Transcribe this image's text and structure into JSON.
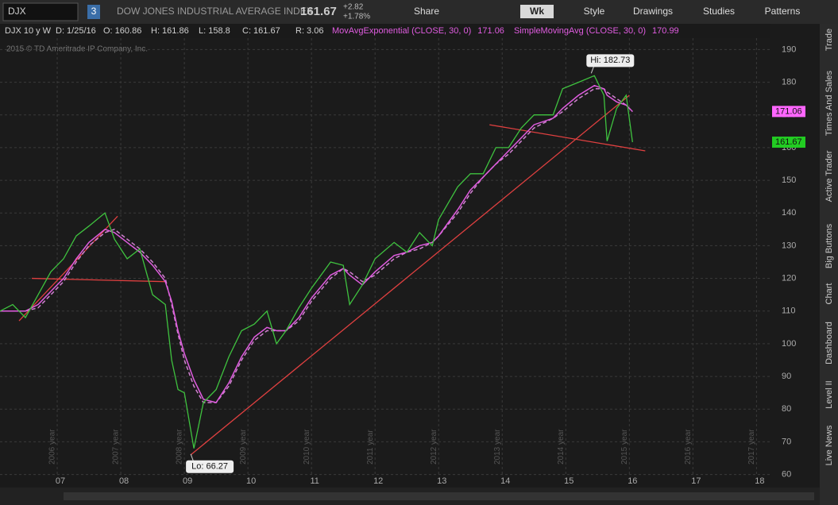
{
  "toolbar": {
    "symbol": "DJX",
    "link": "3",
    "description": "DOW JONES INDUSTRIAL AVERAGE INDEX",
    "last": "161.67",
    "change": "+2.82",
    "change_pct": "+1.78%",
    "buttons": [
      "Share",
      "Wk",
      "Style",
      "Drawings",
      "Studies",
      "Patterns"
    ]
  },
  "info_bar": {
    "items": [
      "DJX 10 y W",
      "D: 1/25/16",
      "O: 160.86",
      "H: 161.86",
      "L: 158.8",
      "C: 161.67",
      "R: 3.06"
    ],
    "studies": [
      {
        "name": "MovAvgExponential (CLOSE, 30, 0)",
        "value": "171.06",
        "color": "#e05ce0"
      },
      {
        "name": "SimpleMovingAvg (CLOSE, 30, 0)",
        "value": "170.99",
        "color": "#e05ce0"
      }
    ]
  },
  "copyright": "2015 © TD Ameritrade IP Company, Inc.",
  "side_tabs": [
    "Trade",
    "Times And Sales",
    "Active Trader",
    "Big Buttons",
    "Chart",
    "Dashboard",
    "Level II",
    "Live News"
  ],
  "chart_data": {
    "type": "line",
    "x": [
      2006.1,
      2006.3,
      2006.5,
      2006.7,
      2006.9,
      2007.1,
      2007.3,
      2007.5,
      2007.75,
      2007.9,
      2008.1,
      2008.3,
      2008.5,
      2008.7,
      2008.8,
      2008.9,
      2009.0,
      2009.15,
      2009.3,
      2009.5,
      2009.7,
      2009.9,
      2010.1,
      2010.3,
      2010.45,
      2010.6,
      2010.8,
      2011.0,
      2011.3,
      2011.5,
      2011.6,
      2011.8,
      2012.0,
      2012.3,
      2012.5,
      2012.7,
      2012.9,
      2013.0,
      2013.3,
      2013.5,
      2013.7,
      2013.9,
      2014.1,
      2014.3,
      2014.5,
      2014.8,
      2014.95,
      2015.2,
      2015.45,
      2015.6,
      2015.65,
      2015.8,
      2015.95,
      2016.05
    ],
    "series": [
      {
        "name": "DJX",
        "color": "#3fc23f",
        "values": [
          110,
          112,
          108,
          115,
          122,
          126,
          133,
          136,
          140,
          132,
          126,
          129,
          115,
          112,
          95,
          86,
          85,
          68,
          82,
          86,
          96,
          104,
          106,
          110,
          100,
          104,
          111,
          117,
          125,
          124,
          112,
          118,
          126,
          131,
          128,
          134,
          130,
          138,
          148,
          152,
          152,
          160,
          160,
          166,
          170,
          170,
          178,
          180,
          182,
          176,
          162,
          172,
          176,
          161.67
        ]
      },
      {
        "name": "MovAvgExponential",
        "color": "#e05ce0",
        "values": [
          110,
          110,
          110,
          112,
          116,
          120,
          126,
          131,
          135,
          134,
          131,
          128,
          124,
          119,
          113,
          104,
          97,
          89,
          83,
          82,
          88,
          96,
          102,
          105,
          104,
          104,
          108,
          114,
          121,
          123,
          121,
          118,
          122,
          127,
          128,
          130,
          131,
          133,
          141,
          147,
          151,
          155,
          159,
          163,
          167,
          169,
          172,
          176,
          179,
          178,
          176,
          174,
          173,
          171.06
        ]
      },
      {
        "name": "SimpleMovingAvg",
        "color": "#d080d0",
        "dash": true,
        "values": [
          110,
          110,
          110,
          111,
          115,
          119,
          125,
          130,
          134,
          135,
          132,
          129,
          125,
          120,
          112,
          103,
          95,
          87,
          82,
          82,
          87,
          95,
          101,
          104,
          104,
          104,
          107,
          113,
          120,
          123,
          122,
          119,
          121,
          126,
          128,
          129,
          131,
          133,
          140,
          146,
          151,
          155,
          158,
          162,
          166,
          169,
          171,
          175,
          178,
          178,
          177,
          175,
          173,
          170.99
        ]
      }
    ],
    "xlim": [
      2006.1,
      2018.22
    ],
    "xticks": [
      {
        "value": 2007,
        "label": "07"
      },
      {
        "value": 2008,
        "label": "08"
      },
      {
        "value": 2009,
        "label": "09"
      },
      {
        "value": 2010,
        "label": "10"
      },
      {
        "value": 2011,
        "label": "11"
      },
      {
        "value": 2012,
        "label": "12"
      },
      {
        "value": 2013,
        "label": "13"
      },
      {
        "value": 2014,
        "label": "14"
      },
      {
        "value": 2015,
        "label": "15"
      },
      {
        "value": 2016,
        "label": "16"
      },
      {
        "value": 2017,
        "label": "17"
      },
      {
        "value": 2018,
        "label": "18"
      }
    ],
    "year_labels": [
      "2006 year",
      "2007 year",
      "2008 year",
      "2009 year",
      "2010 year",
      "2011 year",
      "2012 year",
      "2013 year",
      "2014 year",
      "2015 year",
      "2016 year",
      "2017 year"
    ],
    "ylim": [
      59.9,
      193.5
    ],
    "yticks": [
      60,
      70,
      80,
      90,
      100,
      110,
      120,
      130,
      140,
      150,
      160,
      170,
      180,
      190
    ],
    "grid": true,
    "trendlines": [
      {
        "x": [
          2006.4,
          2007.95
        ],
        "y": [
          107,
          139
        ]
      },
      {
        "x": [
          2006.6,
          2008.7
        ],
        "y": [
          120,
          119
        ]
      },
      {
        "x": [
          2009.1,
          2016.0
        ],
        "y": [
          66,
          176
        ]
      },
      {
        "x": [
          2013.8,
          2016.25
        ],
        "y": [
          167,
          159
        ]
      }
    ],
    "trendline_color": "#e04040",
    "annotations": [
      {
        "text": "Hi: 182.73",
        "x": 2015.4,
        "y": 182.73
      },
      {
        "text": "Lo: 66.27",
        "x": 2009.1,
        "y": 66.27
      }
    ],
    "price_labels": [
      {
        "text": "171.06",
        "value": 171.06,
        "color": "#ff66ff"
      },
      {
        "text": "161.67",
        "value": 161.67,
        "color": "#22cc22"
      }
    ]
  }
}
